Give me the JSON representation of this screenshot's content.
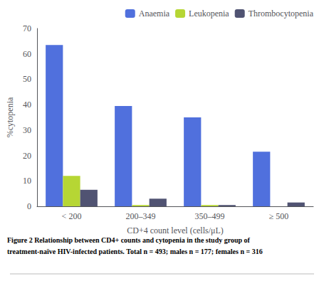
{
  "chart_data": {
    "type": "bar",
    "categories": [
      "< 200",
      "200–349",
      "350–499",
      "≥ 500"
    ],
    "series": [
      {
        "name": "Anaemia",
        "values": [
          63.5,
          39.5,
          35.0,
          21.5
        ]
      },
      {
        "name": "Leukopenia",
        "values": [
          12.0,
          0.5,
          0.5,
          0.0
        ]
      },
      {
        "name": "Thrombocytopenia",
        "values": [
          6.5,
          3.0,
          0.5,
          1.5
        ]
      }
    ],
    "xlabel": "CD+4 count level (cells/μL)",
    "ylabel": "%cytopenia",
    "ylim": [
      0,
      70
    ],
    "yticks": [
      0,
      10,
      20,
      30,
      40,
      50,
      60,
      70
    ],
    "grid": false,
    "legend": "upper right",
    "annotations": [
      "Figure 2 Relationship between CD4+ counts and cytopenia in the study group of",
      "treatment-naïve HIV-infected patients. Total n = 493; males n = 177; females n = 316"
    ]
  }
}
